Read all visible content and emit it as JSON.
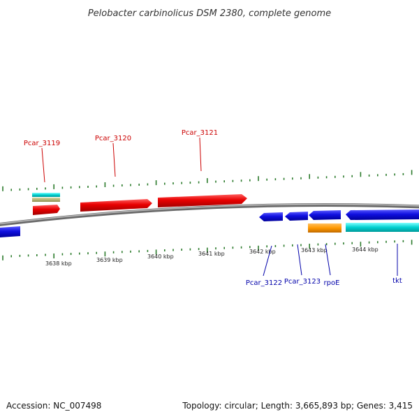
{
  "title": "Pelobacter carbinolicus DSM 2380, complete genome",
  "footer": {
    "accession": "Accession: NC_007498",
    "topology": "Topology: circular; Length: 3,665,893 bp; Genes: 3,415"
  },
  "colors": {
    "forward_gene": "#e00000",
    "reverse_gene": "#0000dd",
    "forward_label": "#cc0000",
    "reverse_label": "#0000aa",
    "cyan_feature": "#00cccc",
    "orange_feature": "#ff9900",
    "khaki_feature": "#b0b070",
    "tick": "#2a7a2a",
    "backbone": "#808080"
  },
  "chart_data": {
    "type": "genome-map",
    "scale_labels": [
      "3638 kbp",
      "3639 kbp",
      "3640 kbp",
      "3641 kbp",
      "3642 kbp",
      "3643 kbp",
      "3644 kbp"
    ],
    "gene_labels": [
      {
        "name": "Pcar_3119",
        "strand": "forward"
      },
      {
        "name": "Pcar_3120",
        "strand": "forward"
      },
      {
        "name": "Pcar_3121",
        "strand": "forward"
      },
      {
        "name": "Pcar_3122",
        "strand": "reverse"
      },
      {
        "name": "Pcar_3123",
        "strand": "reverse"
      },
      {
        "name": "rpoE",
        "strand": "reverse"
      },
      {
        "name": "tkt",
        "strand": "reverse"
      }
    ]
  }
}
